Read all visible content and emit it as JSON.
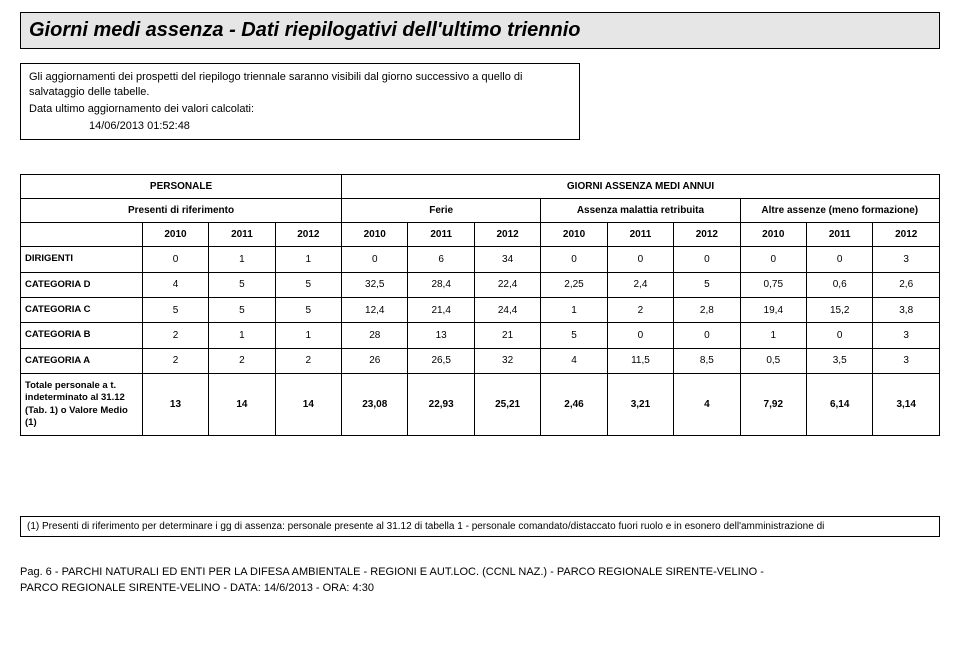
{
  "title": "Giorni medi assenza  - Dati riepilogativi dell'ultimo triennio",
  "intro": {
    "line1": "Gli aggiornamenti dei prospetti del riepilogo triennale saranno visibili dal giorno successivo a quello di salvataggio delle tabelle.",
    "line2": "Data ultimo aggiornamento dei valori calcolati:",
    "line3": "14/06/2013 01:52:48"
  },
  "table": {
    "header": {
      "personale": "PERSONALE",
      "giorni": "GIORNI ASSENZA MEDI ANNUI",
      "presenti": "Presenti di riferimento",
      "ferie": "Ferie",
      "malattia": "Assenza malattia retribuita",
      "altre": "Altre assenze (meno formazione)"
    },
    "years": [
      "2010",
      "2011",
      "2012",
      "2010",
      "2011",
      "2012",
      "2010",
      "2011",
      "2012",
      "2010",
      "2011",
      "2012"
    ],
    "rows": [
      {
        "label": "DIRIGENTI",
        "v": [
          "0",
          "1",
          "1",
          "0",
          "6",
          "34",
          "0",
          "0",
          "0",
          "0",
          "0",
          "3"
        ]
      },
      {
        "label": "CATEGORIA D",
        "v": [
          "4",
          "5",
          "5",
          "32,5",
          "28,4",
          "22,4",
          "2,25",
          "2,4",
          "5",
          "0,75",
          "0,6",
          "2,6"
        ]
      },
      {
        "label": "CATEGORIA C",
        "v": [
          "5",
          "5",
          "5",
          "12,4",
          "21,4",
          "24,4",
          "1",
          "2",
          "2,8",
          "19,4",
          "15,2",
          "3,8"
        ]
      },
      {
        "label": "CATEGORIA B",
        "v": [
          "2",
          "1",
          "1",
          "28",
          "13",
          "21",
          "5",
          "0",
          "0",
          "1",
          "0",
          "3"
        ]
      },
      {
        "label": "CATEGORIA A",
        "v": [
          "2",
          "2",
          "2",
          "26",
          "26,5",
          "32",
          "4",
          "11,5",
          "8,5",
          "0,5",
          "3,5",
          "3"
        ]
      }
    ],
    "total": {
      "label": "Totale personale a t. indeterminato al 31.12 (Tab. 1) o Valore Medio (1)",
      "v": [
        "13",
        "14",
        "14",
        "23,08",
        "22,93",
        "25,21",
        "2,46",
        "3,21",
        "4",
        "7,92",
        "6,14",
        "3,14"
      ]
    }
  },
  "footnote": "(1) Presenti di riferimento per determinare i gg di assenza: personale presente al 31.12 di tabella 1 - personale comandato/distaccato fuori ruolo e in esonero dell'amministrazione di",
  "footer": {
    "l1": "Pag. 6 - PARCHI NATURALI ED ENTI PER LA DIFESA AMBIENTALE - REGIONI E AUT.LOC. (CCNL NAZ.) - PARCO REGIONALE SIRENTE-VELINO -",
    "l2": "PARCO REGIONALE SIRENTE-VELINO - DATA: 14/6/2013 - ORA: 4:30"
  }
}
